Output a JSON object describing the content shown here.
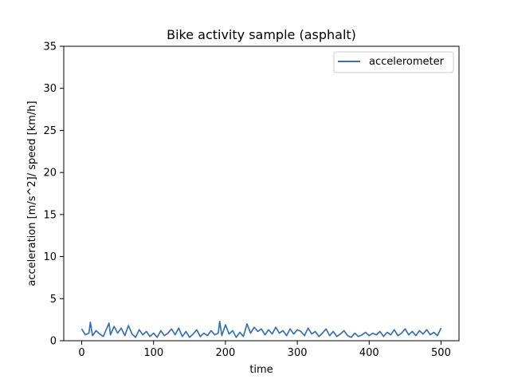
{
  "chart_data": {
    "type": "line",
    "title": "Bike activity sample (asphalt)",
    "xlabel": "time",
    "ylabel": "acceleration [m/s^2]/ speed [km/h]",
    "xlim": [
      -25,
      525
    ],
    "ylim": [
      0,
      35
    ],
    "xticks": [
      0,
      100,
      200,
      300,
      400,
      500
    ],
    "yticks": [
      0,
      5,
      10,
      15,
      20,
      25,
      30,
      35
    ],
    "grid": false,
    "legend_position": "top-right",
    "series": [
      {
        "name": "accelerometer",
        "color": "#3a6fb0",
        "x": [
          0,
          5,
          10,
          12,
          15,
          20,
          25,
          30,
          35,
          38,
          40,
          45,
          50,
          55,
          60,
          65,
          70,
          75,
          80,
          85,
          90,
          95,
          100,
          105,
          110,
          115,
          120,
          125,
          130,
          135,
          140,
          145,
          150,
          155,
          160,
          165,
          170,
          175,
          180,
          185,
          190,
          192,
          195,
          200,
          205,
          210,
          215,
          220,
          225,
          230,
          235,
          240,
          245,
          250,
          255,
          260,
          265,
          270,
          275,
          280,
          285,
          290,
          295,
          300,
          305,
          310,
          315,
          320,
          325,
          330,
          335,
          340,
          345,
          350,
          355,
          360,
          365,
          370,
          375,
          380,
          385,
          390,
          395,
          400,
          405,
          410,
          415,
          420,
          425,
          430,
          435,
          440,
          445,
          450,
          455,
          460,
          465,
          470,
          475,
          480,
          485,
          490,
          495,
          500
        ],
        "values": [
          1.4,
          0.7,
          0.9,
          2.2,
          0.6,
          1.2,
          0.8,
          0.5,
          1.5,
          2.1,
          0.7,
          1.7,
          0.9,
          1.5,
          0.6,
          1.8,
          0.8,
          0.4,
          1.3,
          0.7,
          1.1,
          0.5,
          0.9,
          0.4,
          1.2,
          0.6,
          0.9,
          1.4,
          0.7,
          1.5,
          0.5,
          1.1,
          0.4,
          0.8,
          1.3,
          0.5,
          0.9,
          0.6,
          1.2,
          0.7,
          0.9,
          2.3,
          0.6,
          1.9,
          0.8,
          1.2,
          0.4,
          1.0,
          0.5,
          2.0,
          0.9,
          1.6,
          1.1,
          1.4,
          0.7,
          1.3,
          0.8,
          1.6,
          0.9,
          1.2,
          0.6,
          1.4,
          0.8,
          1.3,
          1.1,
          0.6,
          1.5,
          0.8,
          1.1,
          0.5,
          0.9,
          1.4,
          0.6,
          1.1,
          0.5,
          0.8,
          1.2,
          0.6,
          0.4,
          0.9,
          0.5,
          0.7,
          1.0,
          0.6,
          0.9,
          0.7,
          1.1,
          0.5,
          1.0,
          0.7,
          1.3,
          0.6,
          0.9,
          1.4,
          0.7,
          1.1,
          0.6,
          1.2,
          0.8,
          1.3,
          0.7,
          1.0,
          0.6,
          1.5
        ]
      }
    ]
  }
}
